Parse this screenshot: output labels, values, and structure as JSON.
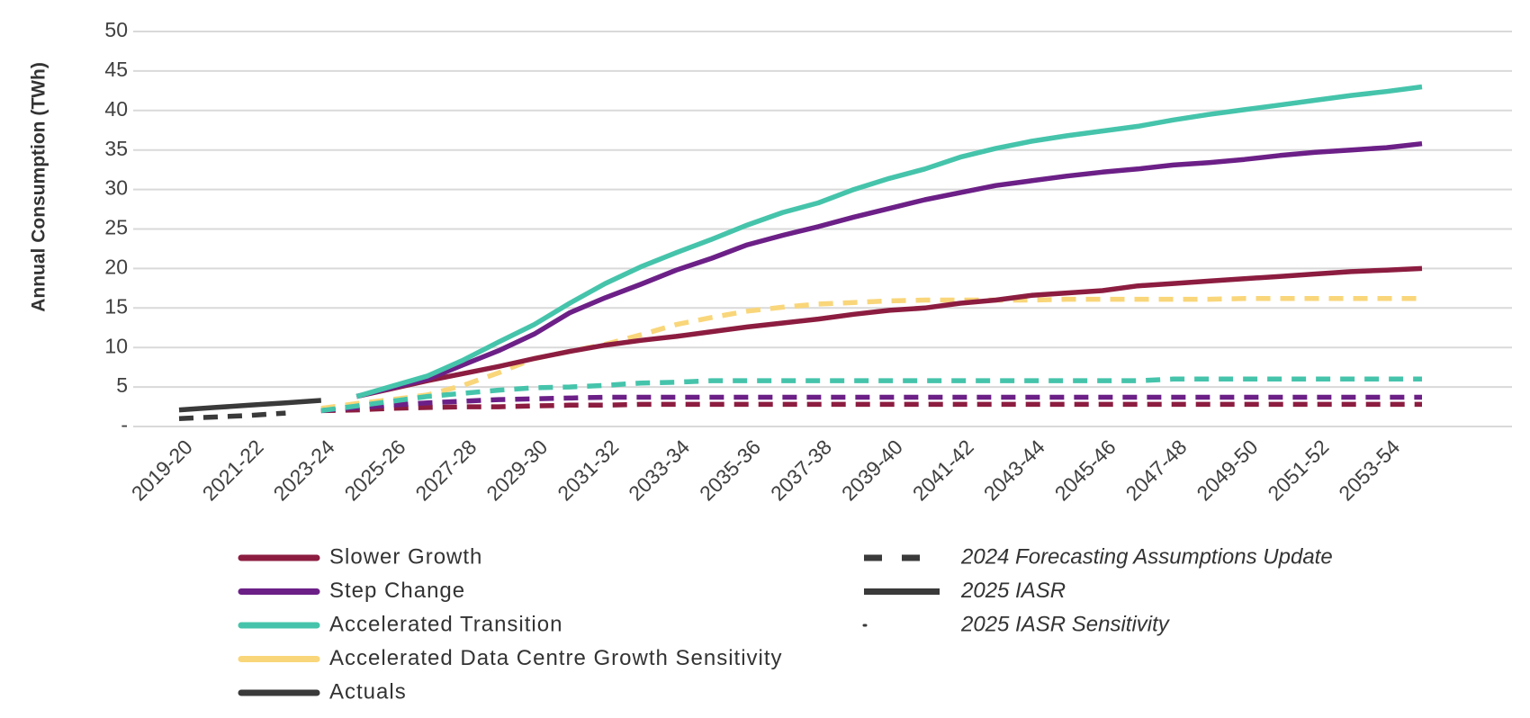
{
  "chart_data": {
    "type": "line",
    "y_label": "Annual Consumption (TWh)",
    "categories": [
      "2019-20",
      null,
      "2021-22",
      null,
      "2023-24",
      null,
      "2025-26",
      null,
      "2027-28",
      null,
      "2029-30",
      null,
      "2031-32",
      null,
      "2033-34",
      null,
      "2035-36",
      null,
      "2037-38",
      null,
      "2039-40",
      null,
      "2041-42",
      null,
      "2043-44",
      null,
      "2045-46",
      null,
      "2047-48",
      null,
      "2049-50",
      null,
      "2051-52",
      null,
      "2053-54",
      null
    ],
    "ylim": [
      0,
      50
    ],
    "yticks": [
      {
        "value": 0,
        "label": "-"
      },
      5,
      10,
      15,
      20,
      25,
      30,
      35,
      40,
      45,
      50
    ],
    "grid": true,
    "sources": [
      {
        "name": "2024 Forecasting Assumptions Update",
        "style": "dashed"
      },
      {
        "name": "2025 IASR",
        "style": "solid"
      },
      {
        "name": "2025 IASR Sensitivity",
        "style": "dot"
      }
    ],
    "series": [
      {
        "name": "Slower Growth",
        "source": "2025 IASR",
        "color": "#8c1d40",
        "values": [
          null,
          null,
          null,
          null,
          null,
          3.8,
          4.8,
          5.8,
          6.7,
          7.6,
          8.6,
          9.5,
          10.3,
          10.9,
          11.4,
          12.0,
          12.6,
          13.1,
          13.6,
          14.2,
          14.7,
          15.0,
          15.6,
          16.0,
          16.6,
          16.9,
          17.2,
          17.8,
          18.1,
          18.4,
          18.7,
          19.0,
          19.3,
          19.6,
          19.8,
          20.0
        ]
      },
      {
        "name": "Step Change",
        "source": "2025 IASR",
        "color": "#6c2087",
        "values": [
          null,
          null,
          null,
          null,
          null,
          3.8,
          4.9,
          6.0,
          7.8,
          9.6,
          11.7,
          14.4,
          16.3,
          18.0,
          19.8,
          21.3,
          23.0,
          24.2,
          25.3,
          26.5,
          27.6,
          28.7,
          29.6,
          30.5,
          31.1,
          31.7,
          32.2,
          32.6,
          33.1,
          33.4,
          33.8,
          34.3,
          34.7,
          35.0,
          35.3,
          35.8
        ]
      },
      {
        "name": "Accelerated  Transition",
        "source": "2025 IASR",
        "color": "#45c4ab",
        "values": [
          null,
          null,
          null,
          null,
          null,
          3.8,
          5.1,
          6.4,
          8.4,
          10.7,
          12.9,
          15.6,
          18.1,
          20.2,
          22.0,
          23.7,
          25.5,
          27.1,
          28.3,
          30.0,
          31.4,
          32.6,
          34.1,
          35.2,
          36.1,
          36.8,
          37.4,
          38.0,
          38.8,
          39.5,
          40.1,
          40.7,
          41.3,
          41.9,
          42.4,
          43.0
        ]
      },
      {
        "name": "Accelerated Data Centre Growth Sensitivity",
        "source": "2024 Forecasting Assumptions Update",
        "color": "#f9d67a",
        "values": [
          null,
          null,
          null,
          null,
          2.3,
          2.9,
          3.4,
          4.0,
          5.2,
          6.8,
          8.6,
          9.5,
          10.4,
          11.6,
          12.9,
          13.8,
          14.6,
          15.1,
          15.5,
          15.7,
          15.9,
          16.0,
          16.0,
          16.0,
          16.0,
          16.1,
          16.1,
          16.1,
          16.1,
          16.1,
          16.2,
          16.2,
          16.2,
          16.2,
          16.2,
          16.2
        ]
      },
      {
        "name": "Actuals",
        "source": "2025 IASR",
        "color": "#3a3a3a",
        "values": [
          2.1,
          2.4,
          2.7,
          3.0,
          3.3,
          null,
          null,
          null,
          null,
          null,
          null,
          null,
          null,
          null,
          null,
          null,
          null,
          null,
          null,
          null,
          null,
          null,
          null,
          null,
          null,
          null,
          null,
          null,
          null,
          null,
          null,
          null,
          null,
          null,
          null,
          null
        ]
      },
      {
        "name": "Slower Growth",
        "source": "2024 Forecasting Assumptions Update",
        "color": "#8c1d40",
        "values": [
          null,
          null,
          null,
          null,
          2.0,
          2.1,
          2.3,
          2.4,
          2.5,
          2.5,
          2.6,
          2.7,
          2.7,
          2.8,
          2.8,
          2.8,
          2.8,
          2.8,
          2.8,
          2.8,
          2.8,
          2.8,
          2.8,
          2.8,
          2.8,
          2.8,
          2.8,
          2.8,
          2.8,
          2.8,
          2.8,
          2.8,
          2.8,
          2.8,
          2.8,
          2.8
        ]
      },
      {
        "name": "Step Change",
        "source": "2024 Forecasting Assumptions Update",
        "color": "#6c2087",
        "values": [
          null,
          null,
          null,
          null,
          2.0,
          2.4,
          2.7,
          3.0,
          3.2,
          3.4,
          3.5,
          3.6,
          3.7,
          3.7,
          3.7,
          3.7,
          3.7,
          3.7,
          3.7,
          3.7,
          3.7,
          3.7,
          3.7,
          3.7,
          3.7,
          3.7,
          3.7,
          3.7,
          3.7,
          3.7,
          3.7,
          3.7,
          3.7,
          3.7,
          3.7,
          3.7
        ]
      },
      {
        "name": "Accelerated  Transition",
        "source": "2024 Forecasting Assumptions Update",
        "color": "#45c4ab",
        "values": [
          null,
          null,
          null,
          null,
          2.0,
          2.6,
          3.2,
          3.8,
          4.2,
          4.6,
          4.9,
          5.0,
          5.2,
          5.5,
          5.6,
          5.8,
          5.8,
          5.8,
          5.8,
          5.8,
          5.8,
          5.8,
          5.8,
          5.8,
          5.8,
          5.8,
          5.8,
          5.8,
          6.0,
          6.0,
          6.0,
          6.0,
          6.0,
          6.0,
          6.0,
          6.0
        ]
      },
      {
        "name": "Actuals",
        "source": "2024 Forecasting Assumptions Update",
        "color": "#3a3a3a",
        "values": [
          1.0,
          1.2,
          1.4,
          1.7,
          null,
          null,
          null,
          null,
          null,
          null,
          null,
          null,
          null,
          null,
          null,
          null,
          null,
          null,
          null,
          null,
          null,
          null,
          null,
          null,
          null,
          null,
          null,
          null,
          null,
          null,
          null,
          null,
          null,
          null,
          null,
          null
        ]
      }
    ]
  }
}
